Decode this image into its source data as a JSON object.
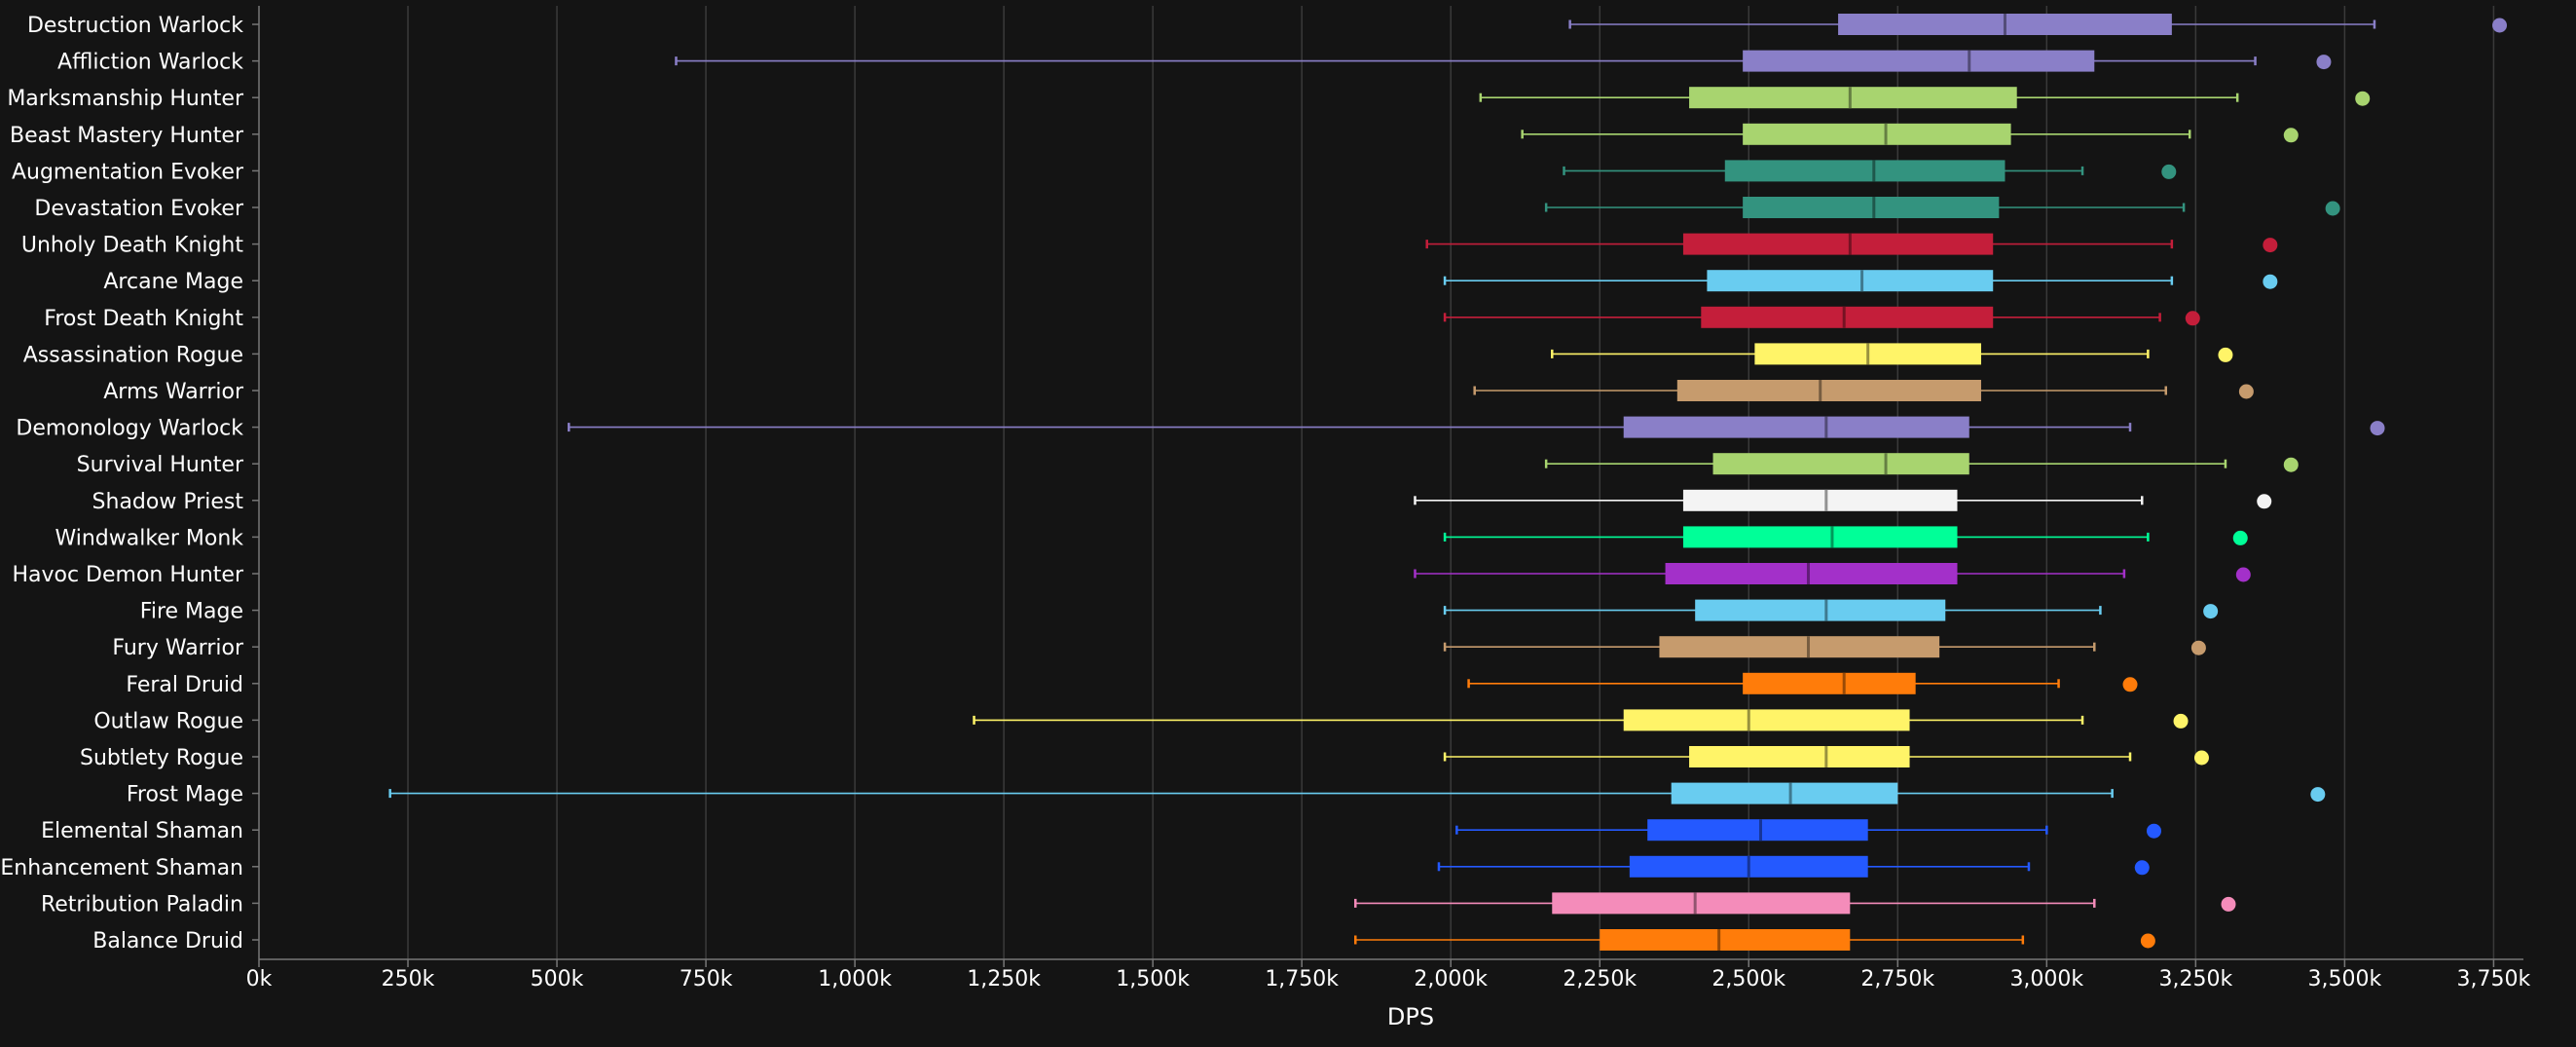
{
  "chart_data": {
    "type": "boxplot",
    "orientation": "horizontal",
    "xlabel": "DPS",
    "xlim": [
      0,
      3800000
    ],
    "x_ticks": [
      0,
      250000,
      500000,
      750000,
      1000000,
      1250000,
      1500000,
      1750000,
      2000000,
      2250000,
      2500000,
      2750000,
      3000000,
      3250000,
      3500000,
      3750000
    ],
    "x_tick_labels": [
      "0k",
      "250k",
      "500k",
      "750k",
      "1,000k",
      "1,250k",
      "1,500k",
      "1,750k",
      "2,000k",
      "2,250k",
      "2,500k",
      "2,750k",
      "3,000k",
      "3,250k",
      "3,500k",
      "3,750k"
    ],
    "grid": true,
    "items": [
      {
        "name": "Destruction Warlock",
        "color": "#8a7fc8",
        "min": 2200000,
        "q1": 2650000,
        "median": 2930000,
        "q3": 3210000,
        "max": 3550000,
        "outlier": 3760000
      },
      {
        "name": "Affliction Warlock",
        "color": "#8a7fc8",
        "min": 700000,
        "q1": 2490000,
        "median": 2870000,
        "q3": 3080000,
        "max": 3350000,
        "outlier": 3465000
      },
      {
        "name": "Marksmanship Hunter",
        "color": "#a8d46f",
        "min": 2050000,
        "q1": 2400000,
        "median": 2670000,
        "q3": 2950000,
        "max": 3320000,
        "outlier": 3530000
      },
      {
        "name": "Beast Mastery Hunter",
        "color": "#a8d46f",
        "min": 2120000,
        "q1": 2490000,
        "median": 2730000,
        "q3": 2940000,
        "max": 3240000,
        "outlier": 3410000
      },
      {
        "name": "Augmentation Evoker",
        "color": "#33937f",
        "min": 2190000,
        "q1": 2460000,
        "median": 2710000,
        "q3": 2930000,
        "max": 3060000,
        "outlier": 3205000
      },
      {
        "name": "Devastation Evoker",
        "color": "#33937f",
        "min": 2160000,
        "q1": 2490000,
        "median": 2710000,
        "q3": 2920000,
        "max": 3230000,
        "outlier": 3480000
      },
      {
        "name": "Unholy Death Knight",
        "color": "#c41e3a",
        "min": 1960000,
        "q1": 2390000,
        "median": 2670000,
        "q3": 2910000,
        "max": 3210000,
        "outlier": 3375000
      },
      {
        "name": "Arcane Mage",
        "color": "#69ccf0",
        "min": 1990000,
        "q1": 2430000,
        "median": 2690000,
        "q3": 2910000,
        "max": 3210000,
        "outlier": 3375000
      },
      {
        "name": "Frost Death Knight",
        "color": "#c41e3a",
        "min": 1990000,
        "q1": 2420000,
        "median": 2660000,
        "q3": 2910000,
        "max": 3190000,
        "outlier": 3245000
      },
      {
        "name": "Assassination Rogue",
        "color": "#fff468",
        "min": 2170000,
        "q1": 2510000,
        "median": 2700000,
        "q3": 2890000,
        "max": 3170000,
        "outlier": 3300000
      },
      {
        "name": "Arms Warrior",
        "color": "#c69b6d",
        "min": 2040000,
        "q1": 2380000,
        "median": 2620000,
        "q3": 2890000,
        "max": 3200000,
        "outlier": 3335000
      },
      {
        "name": "Demonology Warlock",
        "color": "#8a7fc8",
        "min": 520000,
        "q1": 2290000,
        "median": 2630000,
        "q3": 2870000,
        "max": 3140000,
        "outlier": 3555000
      },
      {
        "name": "Survival Hunter",
        "color": "#a8d46f",
        "min": 2160000,
        "q1": 2440000,
        "median": 2730000,
        "q3": 2870000,
        "max": 3300000,
        "outlier": 3410000
      },
      {
        "name": "Shadow Priest",
        "color": "#f4f4f4",
        "min": 1940000,
        "q1": 2390000,
        "median": 2630000,
        "q3": 2850000,
        "max": 3160000,
        "outlier": 3365000
      },
      {
        "name": "Windwalker Monk",
        "color": "#00ff98",
        "min": 1990000,
        "q1": 2390000,
        "median": 2640000,
        "q3": 2850000,
        "max": 3170000,
        "outlier": 3325000
      },
      {
        "name": "Havoc Demon Hunter",
        "color": "#a330c9",
        "min": 1940000,
        "q1": 2360000,
        "median": 2600000,
        "q3": 2850000,
        "max": 3130000,
        "outlier": 3330000
      },
      {
        "name": "Fire Mage",
        "color": "#69ccf0",
        "min": 1990000,
        "q1": 2410000,
        "median": 2630000,
        "q3": 2830000,
        "max": 3090000,
        "outlier": 3275000
      },
      {
        "name": "Fury Warrior",
        "color": "#c69b6d",
        "min": 1990000,
        "q1": 2350000,
        "median": 2600000,
        "q3": 2820000,
        "max": 3080000,
        "outlier": 3255000
      },
      {
        "name": "Feral Druid",
        "color": "#ff7c0a",
        "min": 2030000,
        "q1": 2490000,
        "median": 2660000,
        "q3": 2780000,
        "max": 3020000,
        "outlier": 3140000
      },
      {
        "name": "Outlaw Rogue",
        "color": "#fff468",
        "min": 1200000,
        "q1": 2290000,
        "median": 2500000,
        "q3": 2770000,
        "max": 3060000,
        "outlier": 3225000
      },
      {
        "name": "Subtlety Rogue",
        "color": "#fff468",
        "min": 1990000,
        "q1": 2400000,
        "median": 2630000,
        "q3": 2770000,
        "max": 3140000,
        "outlier": 3260000
      },
      {
        "name": "Frost Mage",
        "color": "#69ccf0",
        "min": 220000,
        "q1": 2370000,
        "median": 2570000,
        "q3": 2750000,
        "max": 3110000,
        "outlier": 3455000
      },
      {
        "name": "Elemental Shaman",
        "color": "#2459ff",
        "min": 2010000,
        "q1": 2330000,
        "median": 2520000,
        "q3": 2700000,
        "max": 3000000,
        "outlier": 3180000
      },
      {
        "name": "Enhancement Shaman",
        "color": "#2459ff",
        "min": 1980000,
        "q1": 2300000,
        "median": 2500000,
        "q3": 2700000,
        "max": 2970000,
        "outlier": 3160000
      },
      {
        "name": "Retribution Paladin",
        "color": "#f48cba",
        "min": 1840000,
        "q1": 2170000,
        "median": 2410000,
        "q3": 2670000,
        "max": 3080000,
        "outlier": 3305000
      },
      {
        "name": "Balance Druid",
        "color": "#ff7c0a",
        "min": 1840000,
        "q1": 2250000,
        "median": 2450000,
        "q3": 2670000,
        "max": 2960000,
        "outlier": 3170000
      }
    ]
  }
}
